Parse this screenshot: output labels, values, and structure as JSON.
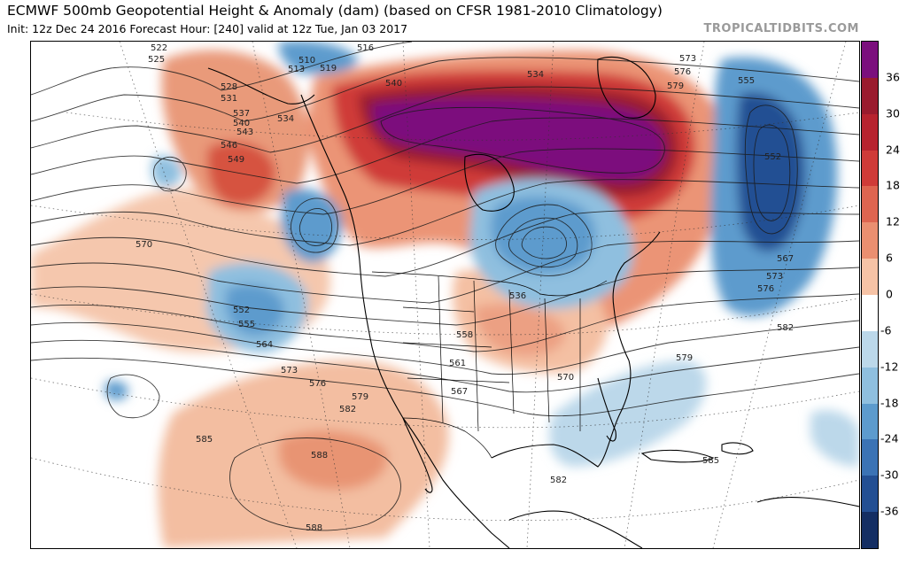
{
  "header": {
    "title": "ECMWF 500mb Geopotential Height & Anomaly (dam) (based on CFSR 1981-2010 Climatology)",
    "subtitle": "Init: 12z Dec 24 2016   Forecast Hour: [240]   valid at 12z Tue, Jan 03 2017",
    "brand": "TROPICALTIDBITS.COM"
  },
  "colorbar": {
    "labels": [
      "36",
      "30",
      "24",
      "18",
      "12",
      "6",
      "0",
      "-6",
      "-12",
      "-18",
      "-24",
      "-30",
      "-36"
    ],
    "colors": [
      "#7b0f7d",
      "#9a1b2e",
      "#b7232f",
      "#cf3b38",
      "#de6550",
      "#ea8f70",
      "#f6c3a6",
      "#ffffff",
      "#bcd8ea",
      "#8fbfdf",
      "#5d9bcd",
      "#3b73b5",
      "#234f93",
      "#142e63"
    ]
  },
  "contour_labels": [
    "522",
    "525",
    "510",
    "513",
    "519",
    "516",
    "528",
    "531",
    "537",
    "540",
    "543",
    "546",
    "549",
    "534",
    "552",
    "555",
    "564",
    "570",
    "573",
    "576",
    "579",
    "582",
    "585",
    "588",
    "558",
    "561",
    "567",
    "540",
    "536",
    "534",
    "573",
    "576",
    "579",
    "555",
    "552",
    "567",
    "573",
    "576",
    "582",
    "585",
    "570",
    "579",
    "582",
    "588"
  ]
}
